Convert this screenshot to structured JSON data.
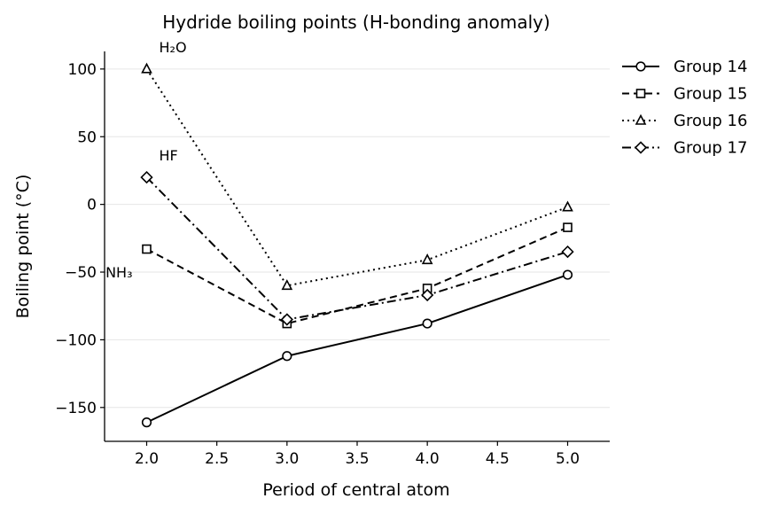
{
  "chart_data": {
    "type": "line",
    "title": "Hydride boiling points (H-bonding anomaly)",
    "xlabel": "Period of central atom",
    "ylabel": "Boiling point (°C)",
    "xlim": [
      1.7,
      5.3
    ],
    "ylim": [
      -175,
      113
    ],
    "x_ticks": [
      2.0,
      2.5,
      3.0,
      3.5,
      4.0,
      4.5,
      5.0
    ],
    "x_tick_labels": [
      "2.0",
      "2.5",
      "3.0",
      "3.5",
      "4.0",
      "4.5",
      "5.0"
    ],
    "y_ticks": [
      100,
      50,
      0,
      -50,
      -100,
      -150
    ],
    "y_tick_labels": [
      "100",
      "50",
      "0",
      "−50",
      "−100",
      "−150"
    ],
    "grid": "horizontal",
    "legend_position": "outside-right-top",
    "series": [
      {
        "name": "Group 14",
        "marker": "circle",
        "dash": "solid",
        "x": [
          2,
          3,
          4,
          5
        ],
        "values": [
          -161,
          -112,
          -88,
          -52
        ]
      },
      {
        "name": "Group 15",
        "marker": "square",
        "dash": "dashed",
        "x": [
          2,
          3,
          4,
          5
        ],
        "values": [
          -33,
          -88,
          -62,
          -17
        ]
      },
      {
        "name": "Group 16",
        "marker": "triangle",
        "dash": "dotted",
        "x": [
          2,
          3,
          4,
          5
        ],
        "values": [
          100,
          -60,
          -41,
          -2
        ]
      },
      {
        "name": "Group 17",
        "marker": "diamond",
        "dash": "dashdot",
        "x": [
          2,
          3,
          4,
          5
        ],
        "values": [
          20,
          -85,
          -67,
          -35
        ]
      }
    ],
    "annotations": [
      {
        "text": "H₂O",
        "x": 2,
        "y": 100
      },
      {
        "text": "HF",
        "x": 2,
        "y": 20
      },
      {
        "text": "NH₃",
        "x": 2,
        "y": -33
      }
    ],
    "colors": {
      "line": "#000000",
      "marker_fill": "#ffffff",
      "grid": "#e6e6e6"
    }
  }
}
